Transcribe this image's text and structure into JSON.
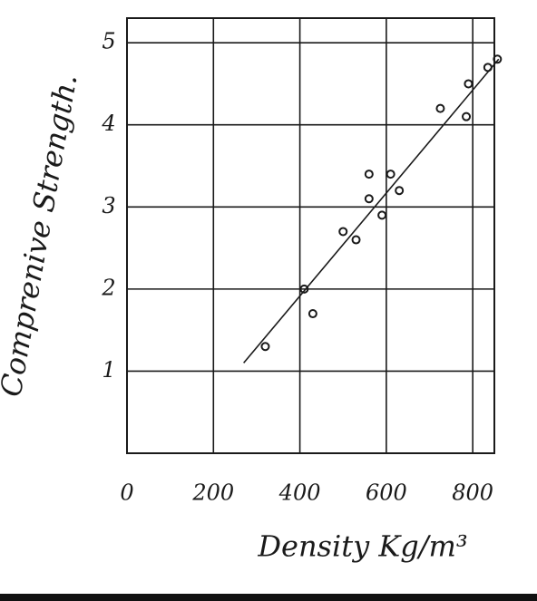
{
  "chart_data": {
    "type": "scatter",
    "x_label": "Density  Kg/m³",
    "y_label": "Comprenive Strength.",
    "x": [
      320,
      410,
      430,
      500,
      530,
      560,
      560,
      610,
      630,
      590,
      725,
      785,
      790,
      835,
      857
    ],
    "values": [
      1.3,
      2.0,
      1.7,
      2.7,
      2.6,
      3.1,
      3.4,
      3.4,
      3.2,
      2.9,
      4.2,
      4.1,
      4.5,
      4.7,
      4.8
    ],
    "color": "#1a1a1a",
    "fit_line": {
      "x": [
        270,
        860
      ],
      "values": [
        1.1,
        4.8
      ]
    },
    "xlim": [
      0,
      850
    ],
    "ylim": [
      0,
      5.3
    ],
    "xticks": [
      0,
      200,
      400,
      600,
      800
    ],
    "yticks": [
      1,
      2,
      3,
      4,
      5
    ],
    "grid": true
  }
}
